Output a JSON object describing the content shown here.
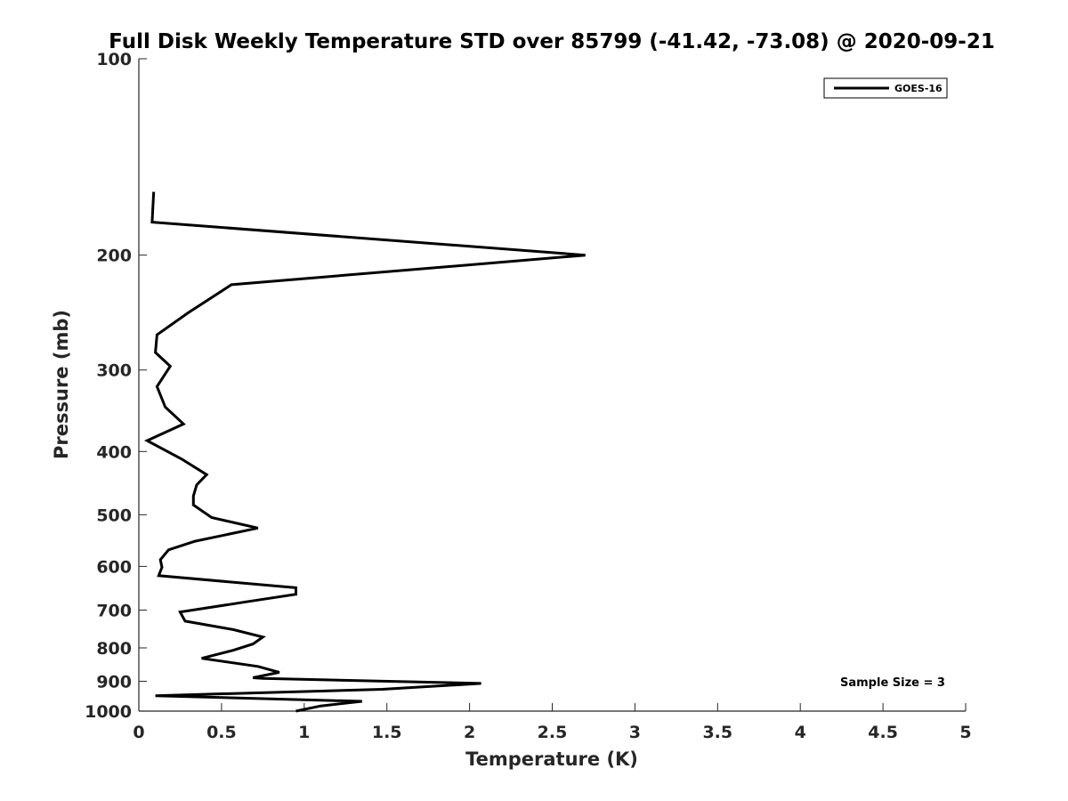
{
  "chart_data": {
    "type": "line",
    "title": "Full Disk Weekly Temperature STD over 85799 (-41.42, -73.08) @ 2020-09-21",
    "xlabel": "Temperature (K)",
    "ylabel": "Pressure (mb)",
    "xlim": [
      0,
      5
    ],
    "ylim": [
      100,
      1000
    ],
    "yscale": "log",
    "y_reversed": true,
    "grid": false,
    "legend_position": "top-right",
    "xticks": [
      0,
      0.5,
      1,
      1.5,
      2,
      2.5,
      3,
      3.5,
      4,
      4.5,
      5
    ],
    "xtick_labels": [
      "0",
      "0.5",
      "1",
      "1.5",
      "2",
      "2.5",
      "3",
      "3.5",
      "4",
      "4.5",
      "5"
    ],
    "yticks": [
      100,
      200,
      300,
      400,
      500,
      600,
      700,
      800,
      900,
      1000
    ],
    "ytick_labels": [
      "100",
      "200",
      "300",
      "400",
      "500",
      "600",
      "700",
      "800",
      "900",
      "1000"
    ],
    "series": [
      {
        "name": "GOES-16",
        "color": "#000000",
        "points": [
          [
            0.09,
            160
          ],
          [
            0.08,
            178
          ],
          [
            2.7,
            200
          ],
          [
            0.56,
            222
          ],
          [
            0.3,
            245
          ],
          [
            0.11,
            265
          ],
          [
            0.1,
            282
          ],
          [
            0.19,
            296
          ],
          [
            0.11,
            318
          ],
          [
            0.16,
            342
          ],
          [
            0.27,
            363
          ],
          [
            0.05,
            385
          ],
          [
            0.26,
            411
          ],
          [
            0.41,
            434
          ],
          [
            0.35,
            450
          ],
          [
            0.33,
            468
          ],
          [
            0.33,
            483
          ],
          [
            0.44,
            505
          ],
          [
            0.72,
            524
          ],
          [
            0.34,
            549
          ],
          [
            0.18,
            566
          ],
          [
            0.13,
            586
          ],
          [
            0.14,
            602
          ],
          [
            0.12,
            620
          ],
          [
            0.95,
            647
          ],
          [
            0.95,
            662
          ],
          [
            0.65,
            680
          ],
          [
            0.25,
            705
          ],
          [
            0.28,
            728
          ],
          [
            0.57,
            750
          ],
          [
            0.75,
            770
          ],
          [
            0.69,
            789
          ],
          [
            0.57,
            807
          ],
          [
            0.38,
            830
          ],
          [
            0.72,
            854
          ],
          [
            0.85,
            872
          ],
          [
            0.69,
            889
          ],
          [
            0.75,
            891
          ],
          [
            2.07,
            907
          ],
          [
            1.47,
            926
          ],
          [
            0.1,
            947
          ],
          [
            1.35,
            966
          ],
          [
            1.1,
            982
          ],
          [
            0.95,
            1000
          ]
        ]
      }
    ],
    "annotation": "Sample Size = 3"
  }
}
